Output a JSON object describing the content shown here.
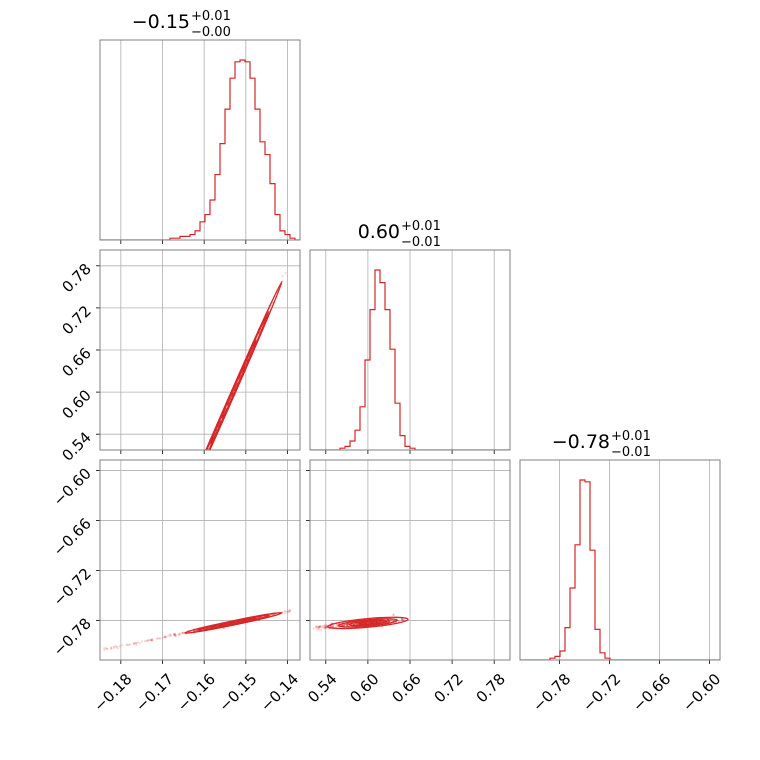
{
  "chart_data": {
    "type": "corner",
    "color": "#d62728",
    "grid": true,
    "parameters": [
      {
        "title": {
          "value": "−0.15",
          "plus": "+0.01",
          "minus": "−0.00"
        },
        "range": [
          -0.185,
          -0.137
        ],
        "ticks": [
          -0.18,
          -0.17,
          -0.16,
          -0.15,
          -0.14
        ],
        "tick_labels": [
          "−0.18",
          "−0.17",
          "−0.16",
          "−0.15",
          "−0.14"
        ],
        "hist_edges": [
          -0.185,
          -0.137
        ],
        "hist": [
          0,
          0,
          0,
          0,
          0,
          0,
          0,
          0,
          0,
          0,
          0,
          0,
          0,
          0,
          1,
          1,
          2,
          2,
          3,
          5,
          10,
          14,
          22,
          36,
          53,
          72,
          89,
          98,
          99,
          98,
          89,
          72,
          54,
          47,
          31,
          14,
          5,
          3,
          1,
          0
        ]
      },
      {
        "title": {
          "value": "0.60",
          "plus": "+0.01",
          "minus": "−0.01"
        },
        "range": [
          0.5175,
          0.8025
        ],
        "ticks": [
          0.54,
          0.6,
          0.66,
          0.72,
          0.78
        ],
        "tick_labels": [
          "0.54",
          "0.60",
          "0.66",
          "0.72",
          "0.78"
        ],
        "hist_edges": [
          0.5175,
          0.8025
        ],
        "hist": [
          0,
          0,
          0,
          0,
          0,
          0,
          1,
          2,
          5,
          11,
          24,
          50,
          78,
          100,
          93,
          78,
          56,
          26,
          8,
          2,
          1,
          0,
          0,
          0,
          0,
          0,
          0,
          0,
          0,
          0,
          0,
          0,
          0,
          0,
          0,
          0,
          0,
          0,
          0,
          0
        ]
      },
      {
        "title": {
          "value": "−0.78",
          "plus": "+0.01",
          "minus": "−0.01"
        },
        "range": [
          -0.8275,
          -0.5875
        ],
        "ticks": [
          -0.78,
          -0.72,
          -0.66,
          -0.6
        ],
        "tick_labels": [
          "−0.78",
          "−0.72",
          "−0.66",
          "−0.60"
        ],
        "hist_edges": [
          -0.8275,
          -0.5875
        ],
        "hist": [
          0,
          0,
          0,
          0,
          0,
          0,
          1,
          2,
          5,
          18,
          40,
          64,
          100,
          99,
          61,
          17,
          4,
          1,
          0,
          0,
          0,
          0,
          0,
          0,
          0,
          0,
          0,
          0,
          0,
          0,
          0,
          0,
          0,
          0,
          0,
          0,
          0,
          0,
          0,
          0
        ]
      }
    ],
    "pairs": [
      {
        "x": 0,
        "y": 1,
        "center": [
          -0.153,
          0.6
        ],
        "slope": 13.5,
        "sd_major": 0.0045,
        "tail": [
          -0.184,
          -0.14
        ],
        "sd_minor": 0.0028
      },
      {
        "x": 0,
        "y": 2,
        "center": [
          -0.153,
          -0.783
        ],
        "slope": 1.03,
        "sd_major": 0.0045,
        "tail": [
          -0.184,
          -0.14
        ],
        "sd_minor": 0.001
      },
      {
        "x": 1,
        "y": 2,
        "center": [
          0.6,
          -0.783
        ],
        "slope": 0.0765,
        "sd_major": 0.022,
        "tail": [
          0.52,
          0.645
        ],
        "sd_minor": 0.002
      }
    ]
  }
}
